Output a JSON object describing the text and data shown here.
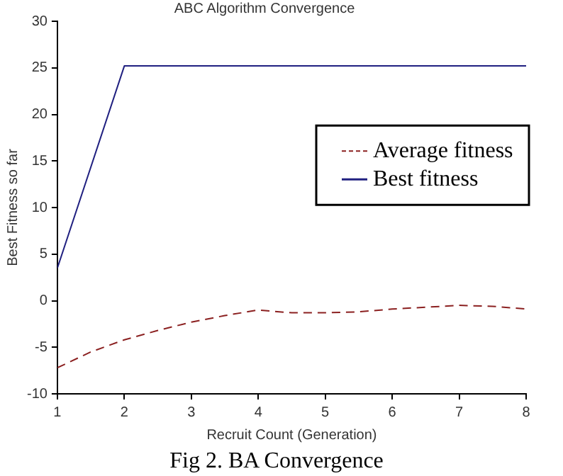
{
  "chart_data": {
    "type": "line",
    "title": "ABC Algorithm Convergence",
    "xlabel": "Recruit Count (Generation)",
    "ylabel": "Best Fitness so far",
    "annotations": [
      "Fig 2. BA Convergence"
    ],
    "x": [
      1,
      1.5,
      2,
      2.5,
      3,
      3.5,
      4,
      4.5,
      5,
      5.5,
      6,
      6.5,
      7,
      7.5,
      8
    ],
    "series": [
      {
        "name": "Average fitness",
        "color": "#8b2020",
        "line_style": "dashed",
        "values": [
          -7.2,
          -5.5,
          -4.2,
          -3.2,
          -2.3,
          -1.6,
          -1.0,
          -1.3,
          -1.3,
          -1.2,
          -0.9,
          -0.7,
          -0.5,
          -0.6,
          -0.9
        ]
      },
      {
        "name": "Best fitness",
        "color": "#202080",
        "line_style": "solid",
        "x": [
          1,
          2,
          8
        ],
        "values": [
          3.5,
          25.2,
          25.2
        ]
      }
    ],
    "xlim": [
      1,
      8
    ],
    "xticks": [
      1,
      2,
      3,
      4,
      5,
      6,
      7,
      8
    ],
    "ylim": [
      -10,
      30
    ],
    "yticks": [
      -10,
      -5,
      0,
      5,
      10,
      15,
      20,
      25,
      30
    ],
    "grid": false,
    "legend": "top right",
    "marker": "none"
  }
}
